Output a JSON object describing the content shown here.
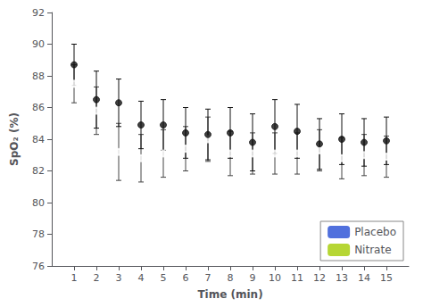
{
  "chart_data": {
    "type": "scatter",
    "x_label": "Time (min)",
    "y_label": "SpO₂ (%)",
    "x": [
      1,
      2,
      3,
      4,
      5,
      6,
      7,
      8,
      9,
      10,
      11,
      12,
      13,
      14,
      15
    ],
    "series": [
      {
        "name": "Placebo",
        "color": "#444444",
        "marker": "emptyCircle",
        "values": [
          87.5,
          85.8,
          83.2,
          82.8,
          83.1,
          83.4,
          84.0,
          83.1,
          83.1,
          83.1,
          83.1,
          83.3,
          82.8,
          83.0,
          82.9
        ],
        "errors": [
          1.2,
          1.5,
          1.8,
          1.5,
          1.5,
          1.4,
          1.4,
          1.4,
          1.3,
          1.3,
          1.3,
          1.3,
          1.3,
          1.3,
          1.3
        ]
      },
      {
        "name": "Nitrate",
        "color": "#111111",
        "marker": "circle",
        "values": [
          88.7,
          86.5,
          86.3,
          84.9,
          84.9,
          84.4,
          84.3,
          84.4,
          83.8,
          84.8,
          84.5,
          83.7,
          84.0,
          83.8,
          83.9
        ],
        "errors": [
          1.3,
          1.8,
          1.5,
          1.5,
          1.6,
          1.6,
          1.6,
          1.6,
          1.8,
          1.7,
          1.7,
          1.6,
          1.6,
          1.5,
          1.5
        ]
      }
    ],
    "xlim": [
      0,
      16
    ],
    "xticks": [
      1,
      2,
      3,
      4,
      5,
      6,
      7,
      8,
      9,
      10,
      11,
      12,
      13,
      14,
      15
    ],
    "ylim": [
      76,
      92
    ],
    "yticks": [
      76,
      78,
      80,
      82,
      84,
      86,
      88,
      90,
      92
    ],
    "grid": false,
    "legend": "lower right"
  }
}
